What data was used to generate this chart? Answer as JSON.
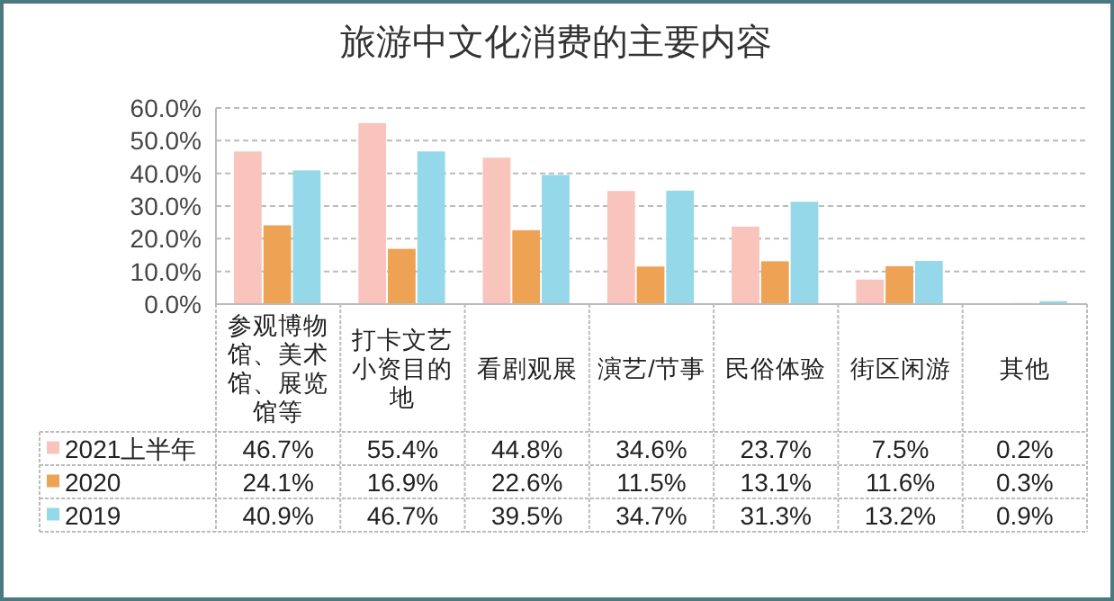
{
  "chart_data": {
    "type": "bar",
    "title": "旅游中文化消费的主要内容",
    "categories": [
      "参观博物馆、美术馆、展览馆等",
      "打卡文艺小资目的地",
      "看剧观展",
      "演艺/节事",
      "民俗体验",
      "街区闲游",
      "其他"
    ],
    "series": [
      {
        "name": "2021上半年",
        "color": "#f8c4bc",
        "values": [
          46.7,
          55.4,
          44.8,
          34.6,
          23.7,
          7.5,
          0.2
        ],
        "value_labels": [
          "46.7%",
          "55.4%",
          "44.8%",
          "34.6%",
          "23.7%",
          "7.5%",
          "0.2%"
        ]
      },
      {
        "name": "2020",
        "color": "#eea254",
        "values": [
          24.1,
          16.9,
          22.6,
          11.5,
          13.1,
          11.6,
          0.3
        ],
        "value_labels": [
          "24.1%",
          "16.9%",
          "22.6%",
          "11.5%",
          "13.1%",
          "11.6%",
          "0.3%"
        ]
      },
      {
        "name": "2019",
        "color": "#94d8ea",
        "values": [
          40.9,
          46.7,
          39.5,
          34.7,
          31.3,
          13.2,
          0.9
        ],
        "value_labels": [
          "40.9%",
          "46.7%",
          "39.5%",
          "34.7%",
          "31.3%",
          "13.2%",
          "0.9%"
        ]
      }
    ],
    "ylim": [
      0,
      60
    ],
    "yticks": [
      {
        "value": 0,
        "label": "0.0%"
      },
      {
        "value": 10,
        "label": "10.0%"
      },
      {
        "value": 20,
        "label": "20.0%"
      },
      {
        "value": 30,
        "label": "30.0%"
      },
      {
        "value": 40,
        "label": "40.0%"
      },
      {
        "value": 50,
        "label": "50.0%"
      },
      {
        "value": 60,
        "label": "60.0%"
      }
    ],
    "grid": "y",
    "legend": "bottom"
  }
}
